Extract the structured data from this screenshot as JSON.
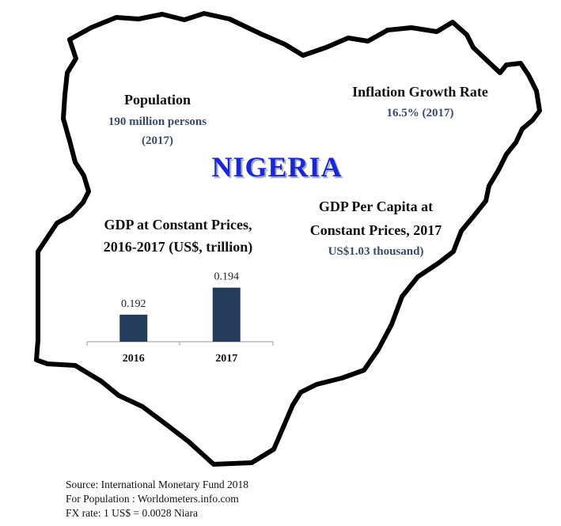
{
  "country": "NIGERIA",
  "population": {
    "heading": "Population",
    "value": "190 million persons",
    "year": "(2017)"
  },
  "inflation": {
    "heading": "Inflation Growth Rate",
    "value": "16.5% (2017)"
  },
  "gdp_per_capita": {
    "heading_line1": "GDP Per Capita at",
    "heading_line2": "Constant Prices, 2017",
    "value": "US$1.03 thousand)"
  },
  "gdp_chart": {
    "heading_line1": "GDP at Constant Prices,",
    "heading_line2": "2016-2017 (US$, trillion)"
  },
  "chart_data": {
    "type": "bar",
    "title": "GDP at Constant Prices, 2016-2017 (US$, trillion)",
    "categories": [
      "2016",
      "2017"
    ],
    "values": [
      0.192,
      0.194
    ],
    "value_labels": [
      "0.192",
      "0.194"
    ],
    "ylim": [
      0.19,
      0.1948
    ],
    "bar_color": "#243b5c",
    "grid": false,
    "legend": "none"
  },
  "footer": {
    "line1": "Source: International Monetary Fund 2018",
    "line2": "For Population : Worldometers.info.com",
    "line3": "FX rate: 1 US$ = 0.0028 Niara"
  },
  "colors": {
    "outline": "#000000",
    "title": "#1a27d6",
    "value_text": "#3a4a6b"
  }
}
